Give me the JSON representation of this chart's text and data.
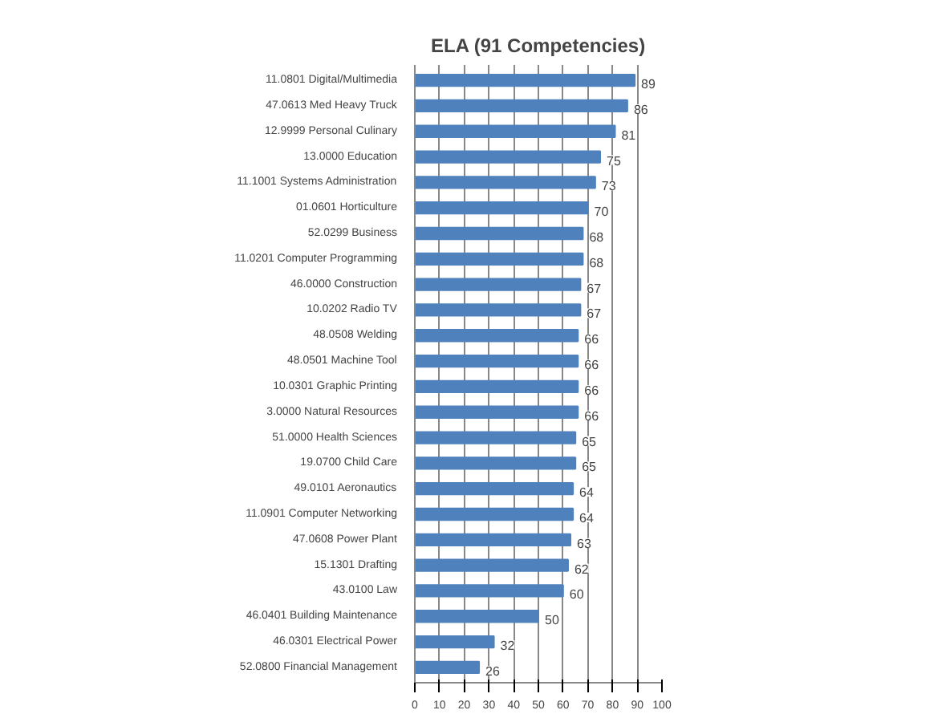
{
  "chart_data": {
    "type": "bar",
    "orientation": "horizontal",
    "title": "ELA (91 Competencies)",
    "categories": [
      "11.0801 Digital/Multimedia",
      "47.0613 Med Heavy Truck",
      "12.9999 Personal Culinary",
      "13.0000 Education",
      "11.1001 Systems Administration",
      "01.0601 Horticulture",
      "52.0299 Business",
      "11.0201 Computer Programming",
      "46.0000 Construction",
      "10.0202 Radio TV",
      "48.0508 Welding",
      "48.0501 Machine Tool",
      "10.0301 Graphic Printing",
      "3.0000 Natural Resources",
      "51.0000 Health Sciences",
      "19.0700 Child Care",
      "49.0101 Aeronautics",
      "11.0901 Computer Networking",
      "47.0608 Power Plant",
      "15.1301 Drafting",
      "43.0100 Law",
      "46.0401 Building Maintenance",
      "46.0301 Electrical Power",
      "52.0800 Financial Management"
    ],
    "values": [
      89,
      86,
      81,
      75,
      73,
      70,
      68,
      68,
      67,
      67,
      66,
      66,
      66,
      66,
      65,
      65,
      64,
      64,
      63,
      62,
      60,
      50,
      32,
      26
    ],
    "color": "#4f81bd",
    "xlim": [
      0,
      100
    ],
    "xticks": [
      0,
      10,
      20,
      30,
      40,
      50,
      60,
      70,
      80,
      90,
      100
    ],
    "grid": "x",
    "data_labels": true
  }
}
